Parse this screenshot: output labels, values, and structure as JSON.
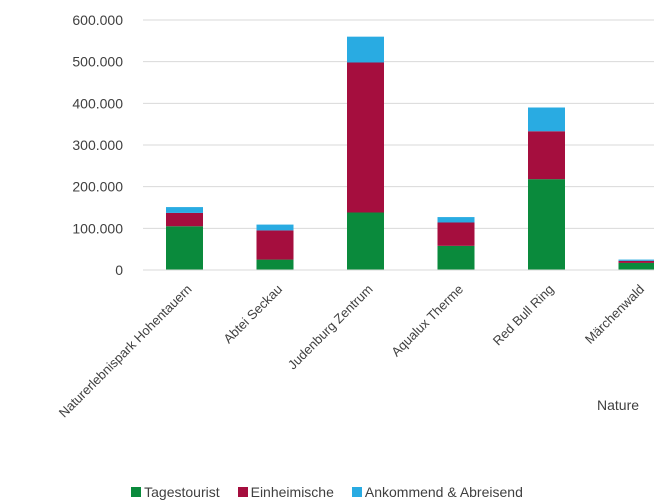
{
  "chart_data": {
    "type": "bar",
    "stacked": true,
    "categories": [
      "Naturerlebnispark Hohentauern",
      "Abtei Seckau",
      "Judenburg Zentrum",
      "Aqualux Therme",
      "Red Bull Ring",
      "Märchenwald"
    ],
    "series": [
      {
        "name": "Tagestourist",
        "color": "#0a8a3c",
        "values": [
          105000,
          25000,
          138000,
          58000,
          218000,
          17000
        ]
      },
      {
        "name": "Einheimische",
        "color": "#a50e3e",
        "values": [
          32000,
          70000,
          360000,
          56000,
          115000,
          5000
        ]
      },
      {
        "name": "Ankommend & Abreisend",
        "color": "#29abe2",
        "values": [
          14000,
          14000,
          62000,
          13000,
          57000,
          3000
        ]
      }
    ],
    "y_ticks": [
      "0",
      "100.000",
      "200.000",
      "300.000",
      "400.000",
      "500.000",
      "600.000"
    ],
    "ylim": [
      0,
      600000
    ],
    "grid": true,
    "legend_position": "bottom",
    "axis_title_partial": "Nature"
  }
}
